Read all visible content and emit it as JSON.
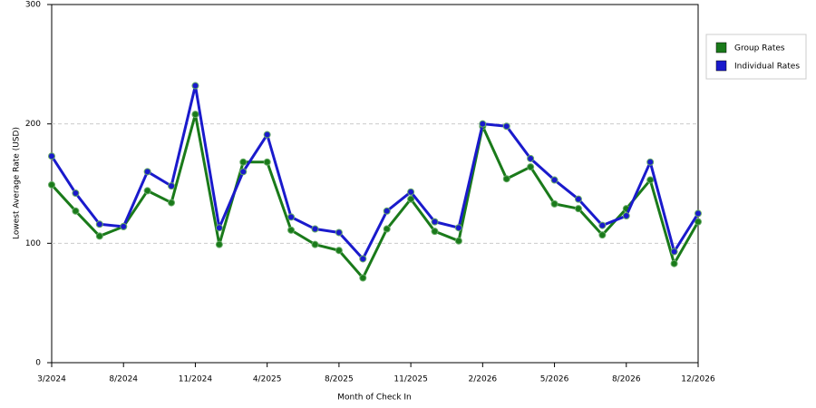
{
  "chart_data": {
    "type": "line",
    "x_label": "Month of Check In",
    "y_label": "Lowest Average Rate (USD)",
    "categories": [
      "3/2024",
      null,
      null,
      "8/2024",
      null,
      null,
      "11/2024",
      null,
      null,
      "4/2025",
      null,
      null,
      "8/2025",
      null,
      null,
      "11/2025",
      null,
      null,
      "2/2026",
      null,
      null,
      "5/2026",
      null,
      null,
      "8/2026",
      null,
      null,
      "12/2026"
    ],
    "series": [
      {
        "name": "Group Rates",
        "color": "#1a7a1a",
        "values": [
          149,
          127,
          106,
          114,
          144,
          134,
          208,
          99,
          168,
          168,
          111,
          99,
          94,
          71,
          112,
          137,
          110,
          102,
          198,
          154,
          164,
          133,
          129,
          107,
          129,
          153,
          83,
          118
        ]
      },
      {
        "name": "Individual Rates",
        "color": "#1a1acc",
        "values": [
          173,
          142,
          116,
          114,
          160,
          148,
          232,
          113,
          160,
          191,
          122,
          112,
          109,
          87,
          127,
          143,
          118,
          113,
          200,
          198,
          171,
          153,
          137,
          115,
          123,
          168,
          93,
          125
        ]
      }
    ],
    "ylim": [
      0,
      300
    ],
    "yticks": [
      0,
      100,
      200,
      300
    ],
    "grid": true,
    "legend": "right"
  }
}
